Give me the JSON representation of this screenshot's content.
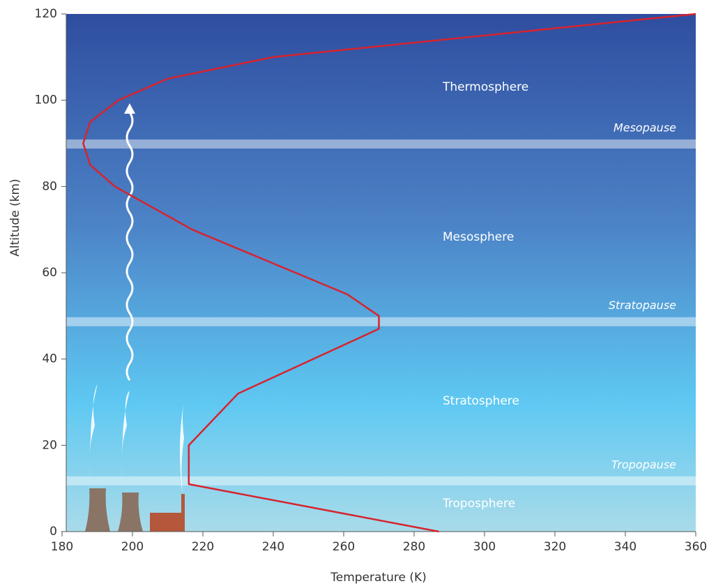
{
  "chart_data": {
    "type": "line",
    "xlabel": "Temperature (K)",
    "ylabel": "Altitude (km)",
    "x": [
      287,
      216,
      216,
      230,
      270,
      270,
      261,
      217,
      195,
      188,
      186,
      188,
      196,
      210,
      240,
      300,
      360
    ],
    "values": [
      0,
      11,
      20,
      32,
      47,
      50,
      55,
      70,
      80,
      85,
      90,
      95,
      100,
      105,
      110,
      115,
      120
    ],
    "color": "#d7232e",
    "xlim": [
      180,
      360
    ],
    "xticks": [
      180,
      200,
      220,
      240,
      260,
      280,
      300,
      320,
      340,
      360
    ],
    "ylim": [
      0,
      120
    ],
    "yticks": [
      0,
      20,
      40,
      60,
      80,
      100,
      120
    ],
    "layers": [
      "Thermosphere",
      "Mesosphere",
      "Stratosphere",
      "Troposphere"
    ],
    "boundaries": [
      {
        "name": "Mesopause",
        "range": [
          88.8,
          90.9
        ]
      },
      {
        "name": "Stratopause",
        "range": [
          47.6,
          49.7
        ]
      },
      {
        "name": "Tropopause",
        "range": [
          10.7,
          12.8
        ]
      }
    ]
  }
}
